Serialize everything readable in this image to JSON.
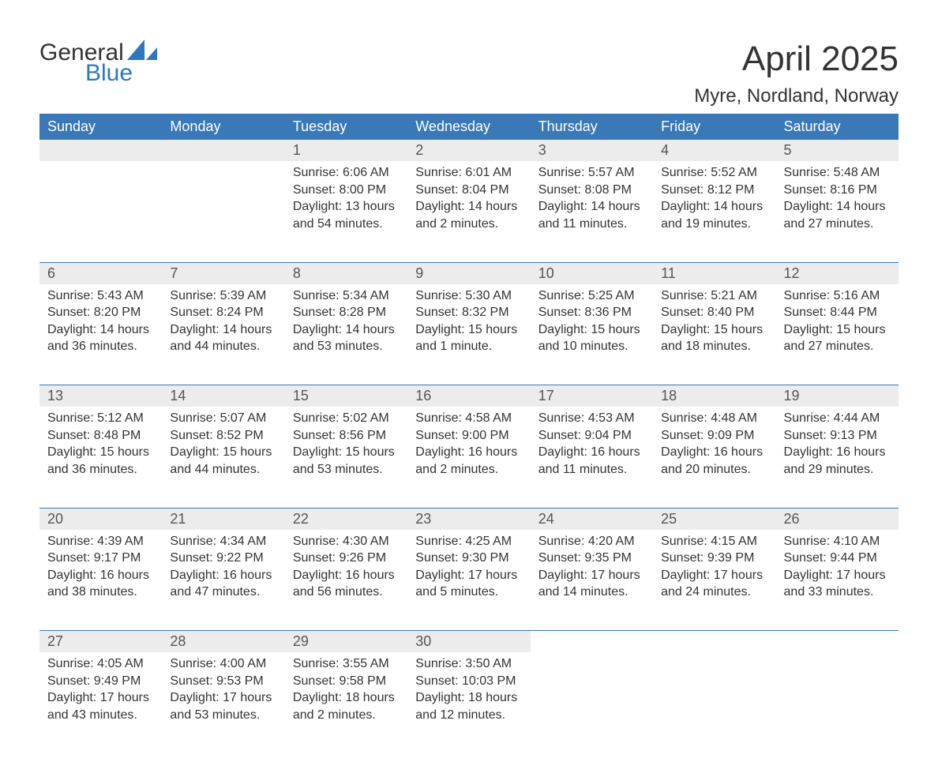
{
  "brand": {
    "word1": "General",
    "word2": "Blue"
  },
  "title": "April 2025",
  "location": "Myre, Nordland, Norway",
  "colors": {
    "header_bg": "#3a78b8",
    "header_text": "#ffffff",
    "daynum_bg": "#ececec",
    "border": "#3a78b8",
    "text": "#333333",
    "brand_blue": "#2f77bd",
    "page_bg": "#ffffff"
  },
  "day_headers": [
    "Sunday",
    "Monday",
    "Tuesday",
    "Wednesday",
    "Thursday",
    "Friday",
    "Saturday"
  ],
  "weeks": [
    [
      null,
      null,
      {
        "n": "1",
        "sr": "Sunrise: 6:06 AM",
        "ss": "Sunset: 8:00 PM",
        "d1": "Daylight: 13 hours",
        "d2": "and 54 minutes."
      },
      {
        "n": "2",
        "sr": "Sunrise: 6:01 AM",
        "ss": "Sunset: 8:04 PM",
        "d1": "Daylight: 14 hours",
        "d2": "and 2 minutes."
      },
      {
        "n": "3",
        "sr": "Sunrise: 5:57 AM",
        "ss": "Sunset: 8:08 PM",
        "d1": "Daylight: 14 hours",
        "d2": "and 11 minutes."
      },
      {
        "n": "4",
        "sr": "Sunrise: 5:52 AM",
        "ss": "Sunset: 8:12 PM",
        "d1": "Daylight: 14 hours",
        "d2": "and 19 minutes."
      },
      {
        "n": "5",
        "sr": "Sunrise: 5:48 AM",
        "ss": "Sunset: 8:16 PM",
        "d1": "Daylight: 14 hours",
        "d2": "and 27 minutes."
      }
    ],
    [
      {
        "n": "6",
        "sr": "Sunrise: 5:43 AM",
        "ss": "Sunset: 8:20 PM",
        "d1": "Daylight: 14 hours",
        "d2": "and 36 minutes."
      },
      {
        "n": "7",
        "sr": "Sunrise: 5:39 AM",
        "ss": "Sunset: 8:24 PM",
        "d1": "Daylight: 14 hours",
        "d2": "and 44 minutes."
      },
      {
        "n": "8",
        "sr": "Sunrise: 5:34 AM",
        "ss": "Sunset: 8:28 PM",
        "d1": "Daylight: 14 hours",
        "d2": "and 53 minutes."
      },
      {
        "n": "9",
        "sr": "Sunrise: 5:30 AM",
        "ss": "Sunset: 8:32 PM",
        "d1": "Daylight: 15 hours",
        "d2": "and 1 minute."
      },
      {
        "n": "10",
        "sr": "Sunrise: 5:25 AM",
        "ss": "Sunset: 8:36 PM",
        "d1": "Daylight: 15 hours",
        "d2": "and 10 minutes."
      },
      {
        "n": "11",
        "sr": "Sunrise: 5:21 AM",
        "ss": "Sunset: 8:40 PM",
        "d1": "Daylight: 15 hours",
        "d2": "and 18 minutes."
      },
      {
        "n": "12",
        "sr": "Sunrise: 5:16 AM",
        "ss": "Sunset: 8:44 PM",
        "d1": "Daylight: 15 hours",
        "d2": "and 27 minutes."
      }
    ],
    [
      {
        "n": "13",
        "sr": "Sunrise: 5:12 AM",
        "ss": "Sunset: 8:48 PM",
        "d1": "Daylight: 15 hours",
        "d2": "and 36 minutes."
      },
      {
        "n": "14",
        "sr": "Sunrise: 5:07 AM",
        "ss": "Sunset: 8:52 PM",
        "d1": "Daylight: 15 hours",
        "d2": "and 44 minutes."
      },
      {
        "n": "15",
        "sr": "Sunrise: 5:02 AM",
        "ss": "Sunset: 8:56 PM",
        "d1": "Daylight: 15 hours",
        "d2": "and 53 minutes."
      },
      {
        "n": "16",
        "sr": "Sunrise: 4:58 AM",
        "ss": "Sunset: 9:00 PM",
        "d1": "Daylight: 16 hours",
        "d2": "and 2 minutes."
      },
      {
        "n": "17",
        "sr": "Sunrise: 4:53 AM",
        "ss": "Sunset: 9:04 PM",
        "d1": "Daylight: 16 hours",
        "d2": "and 11 minutes."
      },
      {
        "n": "18",
        "sr": "Sunrise: 4:48 AM",
        "ss": "Sunset: 9:09 PM",
        "d1": "Daylight: 16 hours",
        "d2": "and 20 minutes."
      },
      {
        "n": "19",
        "sr": "Sunrise: 4:44 AM",
        "ss": "Sunset: 9:13 PM",
        "d1": "Daylight: 16 hours",
        "d2": "and 29 minutes."
      }
    ],
    [
      {
        "n": "20",
        "sr": "Sunrise: 4:39 AM",
        "ss": "Sunset: 9:17 PM",
        "d1": "Daylight: 16 hours",
        "d2": "and 38 minutes."
      },
      {
        "n": "21",
        "sr": "Sunrise: 4:34 AM",
        "ss": "Sunset: 9:22 PM",
        "d1": "Daylight: 16 hours",
        "d2": "and 47 minutes."
      },
      {
        "n": "22",
        "sr": "Sunrise: 4:30 AM",
        "ss": "Sunset: 9:26 PM",
        "d1": "Daylight: 16 hours",
        "d2": "and 56 minutes."
      },
      {
        "n": "23",
        "sr": "Sunrise: 4:25 AM",
        "ss": "Sunset: 9:30 PM",
        "d1": "Daylight: 17 hours",
        "d2": "and 5 minutes."
      },
      {
        "n": "24",
        "sr": "Sunrise: 4:20 AM",
        "ss": "Sunset: 9:35 PM",
        "d1": "Daylight: 17 hours",
        "d2": "and 14 minutes."
      },
      {
        "n": "25",
        "sr": "Sunrise: 4:15 AM",
        "ss": "Sunset: 9:39 PM",
        "d1": "Daylight: 17 hours",
        "d2": "and 24 minutes."
      },
      {
        "n": "26",
        "sr": "Sunrise: 4:10 AM",
        "ss": "Sunset: 9:44 PM",
        "d1": "Daylight: 17 hours",
        "d2": "and 33 minutes."
      }
    ],
    [
      {
        "n": "27",
        "sr": "Sunrise: 4:05 AM",
        "ss": "Sunset: 9:49 PM",
        "d1": "Daylight: 17 hours",
        "d2": "and 43 minutes."
      },
      {
        "n": "28",
        "sr": "Sunrise: 4:00 AM",
        "ss": "Sunset: 9:53 PM",
        "d1": "Daylight: 17 hours",
        "d2": "and 53 minutes."
      },
      {
        "n": "29",
        "sr": "Sunrise: 3:55 AM",
        "ss": "Sunset: 9:58 PM",
        "d1": "Daylight: 18 hours",
        "d2": "and 2 minutes."
      },
      {
        "n": "30",
        "sr": "Sunrise: 3:50 AM",
        "ss": "Sunset: 10:03 PM",
        "d1": "Daylight: 18 hours",
        "d2": "and 12 minutes."
      },
      null,
      null,
      null
    ]
  ]
}
